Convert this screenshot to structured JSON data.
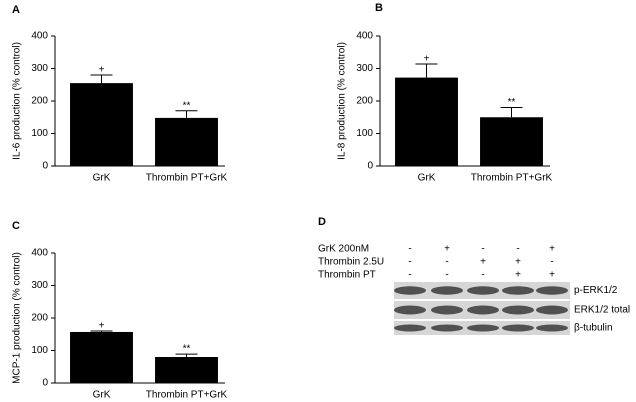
{
  "chart_data": [
    {
      "type": "bar",
      "panel": "A",
      "ylabel": "IL-6 production (% control)",
      "categories": [
        "GrK",
        "Thrombin PT+GrK"
      ],
      "values": [
        255,
        148
      ],
      "errors": [
        25,
        22
      ],
      "annotations": [
        "+",
        "**"
      ],
      "color": "#000000",
      "ylim": [
        0,
        400
      ],
      "yticks": [
        0,
        100,
        200,
        300,
        400
      ]
    },
    {
      "type": "bar",
      "panel": "B",
      "ylabel": "IL-8 production (% control)",
      "categories": [
        "GrK",
        "Thrombin PT+GrK"
      ],
      "values": [
        272,
        150
      ],
      "errors": [
        42,
        30
      ],
      "annotations": [
        "+",
        "**"
      ],
      "color": "#000000",
      "ylim": [
        0,
        400
      ],
      "yticks": [
        0,
        100,
        200,
        300,
        400
      ]
    },
    {
      "type": "bar",
      "panel": "C",
      "ylabel": "MCP-1 production (% control)",
      "categories": [
        "GrK",
        "Thrombin PT+GrK"
      ],
      "values": [
        157,
        80
      ],
      "errors": [
        3,
        9
      ],
      "annotations": [
        "+",
        "**"
      ],
      "color": "#000000",
      "ylim": [
        0,
        400
      ],
      "yticks": [
        0,
        100,
        200,
        300,
        400
      ]
    }
  ],
  "blot": {
    "panel": "D",
    "conditions": [
      {
        "label": "GrK 200nM",
        "signs": [
          "-",
          "+",
          "-",
          "-",
          "+"
        ]
      },
      {
        "label": "Thrombin 2.5U",
        "signs": [
          "-",
          "-",
          "+",
          "+",
          "-"
        ]
      },
      {
        "label": "Thrombin PT",
        "signs": [
          "-",
          "-",
          "-",
          "+",
          "+"
        ]
      }
    ],
    "bands": [
      "p-ERK1/2",
      "ERK1/2 total",
      "β-tubulin"
    ]
  }
}
